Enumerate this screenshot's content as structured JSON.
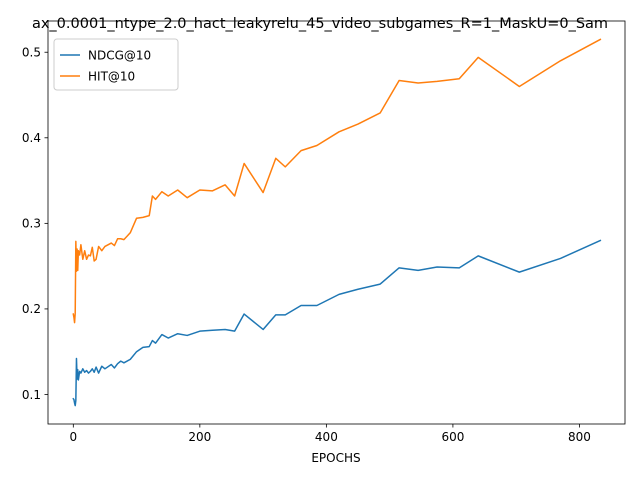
{
  "chart_data": {
    "type": "line",
    "title": "ax_0.0001_ntype_2.0_hact_leakyrelu_45_video_subgames_R=1_MaskU=0_Sam",
    "xlabel": "EPOCHS",
    "ylabel": "",
    "xlim": [
      -40,
      872
    ],
    "ylim": [
      0.0655,
      0.5365
    ],
    "x_ticks": [
      0,
      200,
      400,
      600,
      800
    ],
    "y_ticks": [
      0.1,
      0.2,
      0.3,
      0.4,
      0.5
    ],
    "grid": false,
    "legend_position": "top-left",
    "series": [
      {
        "name": "NDCG@10",
        "color": "#1f77b4",
        "points": [
          [
            0,
            0.095
          ],
          [
            1,
            0.094
          ],
          [
            2,
            0.09
          ],
          [
            3,
            0.087
          ],
          [
            4,
            0.093
          ],
          [
            5,
            0.142
          ],
          [
            6,
            0.118
          ],
          [
            7,
            0.129
          ],
          [
            8,
            0.117
          ],
          [
            10,
            0.127
          ],
          [
            12,
            0.125
          ],
          [
            15,
            0.13
          ],
          [
            18,
            0.126
          ],
          [
            21,
            0.128
          ],
          [
            24,
            0.125
          ],
          [
            27,
            0.127
          ],
          [
            30,
            0.13
          ],
          [
            33,
            0.126
          ],
          [
            36,
            0.132
          ],
          [
            40,
            0.125
          ],
          [
            45,
            0.133
          ],
          [
            50,
            0.13
          ],
          [
            60,
            0.135
          ],
          [
            65,
            0.131
          ],
          [
            70,
            0.136
          ],
          [
            75,
            0.139
          ],
          [
            80,
            0.137
          ],
          [
            90,
            0.141
          ],
          [
            100,
            0.15
          ],
          [
            110,
            0.155
          ],
          [
            120,
            0.156
          ],
          [
            125,
            0.163
          ],
          [
            130,
            0.16
          ],
          [
            140,
            0.17
          ],
          [
            150,
            0.166
          ],
          [
            165,
            0.171
          ],
          [
            180,
            0.169
          ],
          [
            200,
            0.174
          ],
          [
            220,
            0.175
          ],
          [
            240,
            0.176
          ],
          [
            255,
            0.174
          ],
          [
            270,
            0.194
          ],
          [
            300,
            0.176
          ],
          [
            320,
            0.193
          ],
          [
            335,
            0.193
          ],
          [
            360,
            0.204
          ],
          [
            385,
            0.204
          ],
          [
            420,
            0.217
          ],
          [
            450,
            0.223
          ],
          [
            485,
            0.229
          ],
          [
            515,
            0.248
          ],
          [
            545,
            0.245
          ],
          [
            575,
            0.249
          ],
          [
            610,
            0.248
          ],
          [
            640,
            0.262
          ],
          [
            705,
            0.243
          ],
          [
            770,
            0.259
          ],
          [
            833,
            0.28
          ]
        ]
      },
      {
        "name": "HIT@10",
        "color": "#ff7f0e",
        "points": [
          [
            0,
            0.194
          ],
          [
            1,
            0.19
          ],
          [
            2,
            0.184
          ],
          [
            3,
            0.195
          ],
          [
            4,
            0.279
          ],
          [
            5,
            0.244
          ],
          [
            6,
            0.27
          ],
          [
            7,
            0.245
          ],
          [
            8,
            0.268
          ],
          [
            10,
            0.263
          ],
          [
            12,
            0.275
          ],
          [
            15,
            0.258
          ],
          [
            18,
            0.268
          ],
          [
            21,
            0.258
          ],
          [
            24,
            0.263
          ],
          [
            27,
            0.262
          ],
          [
            30,
            0.272
          ],
          [
            33,
            0.256
          ],
          [
            36,
            0.258
          ],
          [
            40,
            0.273
          ],
          [
            45,
            0.268
          ],
          [
            50,
            0.273
          ],
          [
            60,
            0.277
          ],
          [
            65,
            0.274
          ],
          [
            70,
            0.282
          ],
          [
            75,
            0.282
          ],
          [
            80,
            0.281
          ],
          [
            90,
            0.289
          ],
          [
            100,
            0.306
          ],
          [
            110,
            0.307
          ],
          [
            120,
            0.309
          ],
          [
            125,
            0.332
          ],
          [
            130,
            0.328
          ],
          [
            140,
            0.337
          ],
          [
            150,
            0.332
          ],
          [
            165,
            0.339
          ],
          [
            180,
            0.33
          ],
          [
            200,
            0.339
          ],
          [
            220,
            0.338
          ],
          [
            240,
            0.345
          ],
          [
            255,
            0.332
          ],
          [
            270,
            0.37
          ],
          [
            300,
            0.336
          ],
          [
            320,
            0.376
          ],
          [
            335,
            0.366
          ],
          [
            360,
            0.385
          ],
          [
            385,
            0.391
          ],
          [
            420,
            0.407
          ],
          [
            450,
            0.416
          ],
          [
            485,
            0.429
          ],
          [
            515,
            0.467
          ],
          [
            545,
            0.464
          ],
          [
            575,
            0.466
          ],
          [
            610,
            0.469
          ],
          [
            640,
            0.494
          ],
          [
            705,
            0.46
          ],
          [
            770,
            0.49
          ],
          [
            833,
            0.515
          ]
        ]
      }
    ]
  }
}
